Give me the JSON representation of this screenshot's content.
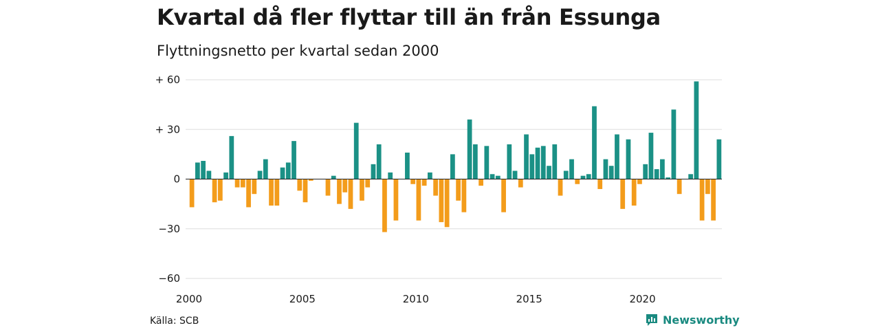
{
  "header": {
    "title": "Kvartal då fler flyttar till än från Essunga",
    "subtitle": "Flyttningsnetto per kvartal sedan 2000"
  },
  "footer": {
    "source": "Källa: SCB",
    "brand": "Newsworthy",
    "brand_icon": "newsworthy-logo-icon"
  },
  "colors": {
    "positive": "#1b9186",
    "negative": "#f39c1b",
    "grid": "#dddddd",
    "axis": "#222222",
    "text": "#1a1a1a",
    "brand": "#1a8a80"
  },
  "chart_data": {
    "type": "bar",
    "title": "Kvartal då fler flyttar till än från Essunga",
    "subtitle": "Flyttningsnetto per kvartal sedan 2000",
    "xlabel": "",
    "ylabel": "",
    "ylim": [
      -60,
      60
    ],
    "yticks": [
      {
        "value": 60,
        "label": "+ 60"
      },
      {
        "value": 30,
        "label": "+ 30"
      },
      {
        "value": 0,
        "label": "0"
      },
      {
        "value": -30,
        "label": "−30"
      },
      {
        "value": -60,
        "label": "−60"
      }
    ],
    "xticks": [
      "2000",
      "2005",
      "2010",
      "2015",
      "2020"
    ],
    "grid": true,
    "legend": "none",
    "start": "2000 Q1",
    "frequency": "quarterly",
    "values": [
      -17,
      10,
      11,
      5,
      -14,
      -13,
      4,
      26,
      -5,
      -5,
      -17,
      -9,
      5,
      12,
      -16,
      -16,
      7,
      10,
      23,
      -7,
      -14,
      -1,
      0,
      0,
      -10,
      2,
      -15,
      -8,
      -18,
      34,
      -13,
      -5,
      9,
      21,
      -32,
      4,
      -25,
      0,
      16,
      -3,
      -25,
      -4,
      4,
      -10,
      -26,
      -29,
      15,
      -13,
      -20,
      36,
      21,
      -4,
      20,
      3,
      2,
      -20,
      21,
      5,
      -5,
      27,
      15,
      19,
      20,
      8,
      21,
      -10,
      5,
      12,
      -3,
      2,
      3,
      44,
      -6,
      12,
      8,
      27,
      -18,
      24,
      -16,
      -3,
      9,
      28,
      6,
      12,
      1,
      42,
      -9,
      0,
      3,
      59,
      -25,
      -9,
      -25,
      24
    ]
  }
}
